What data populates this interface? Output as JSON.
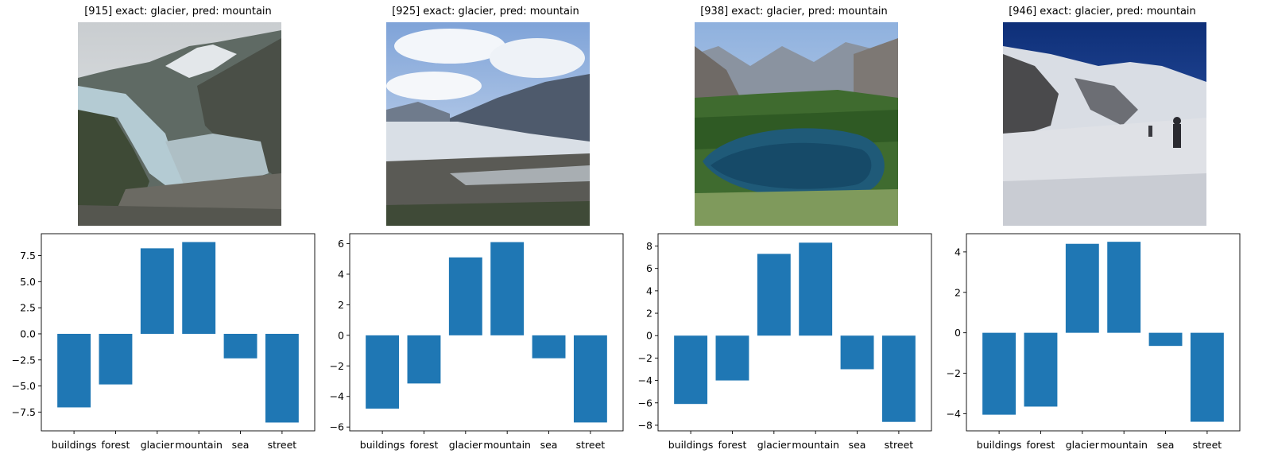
{
  "panels": [
    {
      "title": "[915] exact: glacier, pred: mountain",
      "image": "glacier-valley-photo"
    },
    {
      "title": "[925] exact: glacier, pred: mountain",
      "image": "glacier-clouds-photo"
    },
    {
      "title": "[938] exact: glacier, pred: mountain",
      "image": "mountain-lake-photo"
    },
    {
      "title": "[946] exact: glacier, pred: mountain",
      "image": "glacier-hikers-photo"
    }
  ],
  "colors": {
    "bar": "#1f77b4"
  },
  "chart_data": [
    {
      "type": "bar",
      "categories": [
        "buildings",
        "forest",
        "glacier",
        "mountain",
        "sea",
        "street"
      ],
      "values": [
        -7.05,
        -4.85,
        8.2,
        8.8,
        -2.35,
        -8.5
      ],
      "ylim": [
        -9.3,
        9.6
      ],
      "yticks": [
        -7.5,
        -5.0,
        -2.5,
        0.0,
        2.5,
        5.0,
        7.5
      ],
      "ytick_labels": [
        "−7.5",
        "−5.0",
        "−2.5",
        "0.0",
        "2.5",
        "5.0",
        "7.5"
      ]
    },
    {
      "type": "bar",
      "categories": [
        "buildings",
        "forest",
        "glacier",
        "mountain",
        "sea",
        "street"
      ],
      "values": [
        -4.8,
        -3.15,
        5.1,
        6.1,
        -1.5,
        -5.7
      ],
      "ylim": [
        -6.25,
        6.65
      ],
      "yticks": [
        -6,
        -4,
        -2,
        0,
        2,
        4,
        6
      ],
      "ytick_labels": [
        "−6",
        "−4",
        "−2",
        "0",
        "2",
        "4",
        "6"
      ]
    },
    {
      "type": "bar",
      "categories": [
        "buildings",
        "forest",
        "glacier",
        "mountain",
        "sea",
        "street"
      ],
      "values": [
        -6.1,
        -4.0,
        7.3,
        8.3,
        -3.0,
        -7.7
      ],
      "ylim": [
        -8.5,
        9.1
      ],
      "yticks": [
        -8,
        -6,
        -4,
        -2,
        0,
        2,
        4,
        6,
        8
      ],
      "ytick_labels": [
        "−8",
        "−6",
        "−4",
        "−2",
        "0",
        "2",
        "4",
        "6",
        "8"
      ]
    },
    {
      "type": "bar",
      "categories": [
        "buildings",
        "forest",
        "glacier",
        "mountain",
        "sea",
        "street"
      ],
      "values": [
        -4.05,
        -3.65,
        4.4,
        4.5,
        -0.65,
        -4.4
      ],
      "ylim": [
        -4.85,
        4.9
      ],
      "yticks": [
        -4,
        -2,
        0,
        2,
        4
      ],
      "ytick_labels": [
        "−4",
        "−2",
        "0",
        "2",
        "4"
      ]
    }
  ]
}
